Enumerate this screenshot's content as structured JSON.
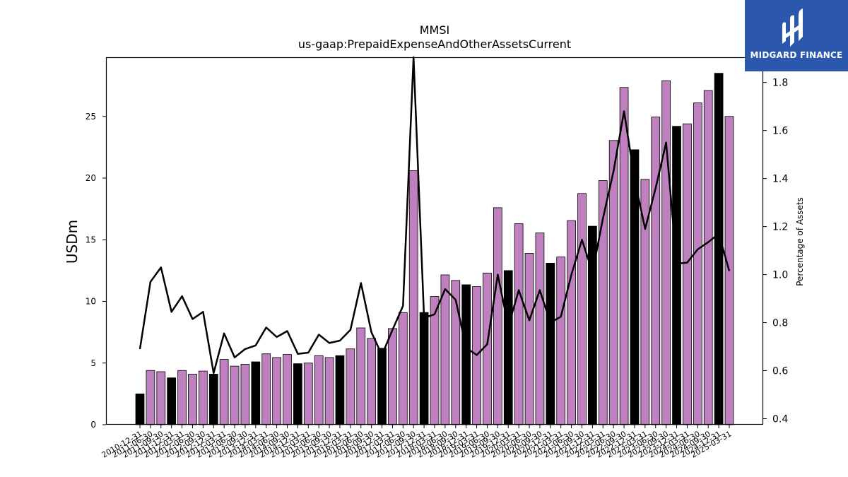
{
  "chart_data": {
    "type": "bar",
    "title": "MMSI",
    "subtitle": "us-gaap:PrepaidExpenseAndOtherAssetsCurrent",
    "ylabel": "USDm",
    "y2label": "Percentage of Assets",
    "ylim": [
      0,
      29.8
    ],
    "y2lim": [
      0.375,
      1.905
    ],
    "yticks": [
      0,
      5,
      10,
      15,
      20,
      25
    ],
    "y2ticks": [
      0.4,
      0.6,
      0.8,
      1.0,
      1.2,
      1.4,
      1.6,
      1.8
    ],
    "grid": false,
    "colors": {
      "quarter_bar": "#bf80bf",
      "annual_bar": "#000000",
      "line": "#000000"
    },
    "categories": [
      "2010-12-31",
      "2011-06-30",
      "2011-09-30",
      "2011-12-31",
      "2012-03-31",
      "2012-06-30",
      "2012-09-30",
      "2012-12-31",
      "2013-03-31",
      "2013-06-30",
      "2013-09-30",
      "2013-12-31",
      "2014-03-31",
      "2014-06-30",
      "2014-09-30",
      "2014-12-31",
      "2015-03-31",
      "2015-06-30",
      "2015-09-30",
      "2015-12-31",
      "2016-03-31",
      "2016-06-30",
      "2016-09-30",
      "2016-12-31",
      "2017-03-31",
      "2017-06-30",
      "2017-09-30",
      "2017-12-31",
      "2018-03-31",
      "2018-06-30",
      "2018-09-30",
      "2018-12-31",
      "2019-03-31",
      "2019-06-30",
      "2019-09-30",
      "2019-12-31",
      "2020-03-31",
      "2020-06-30",
      "2020-09-30",
      "2020-12-31",
      "2021-03-31",
      "2021-06-30",
      "2021-09-30",
      "2021-12-31",
      "2022-03-31",
      "2022-06-30",
      "2022-09-30",
      "2022-12-31",
      "2023-03-31",
      "2023-06-30",
      "2023-09-30",
      "2023-12-31",
      "2024-03-31",
      "2024-06-30",
      "2024-09-30",
      "2024-12-31",
      "2025-03-31"
    ],
    "series": [
      {
        "kind": "bar",
        "values": [
          2.5,
          4.4,
          4.3,
          3.8,
          4.4,
          4.1,
          4.35,
          4.1,
          5.3,
          4.75,
          4.9,
          5.1,
          5.75,
          5.45,
          5.7,
          4.95,
          5.0,
          5.6,
          5.45,
          5.6,
          6.15,
          7.85,
          7.0,
          6.2,
          7.8,
          9.1,
          20.6,
          9.1,
          10.4,
          12.15,
          11.7,
          11.35,
          11.2,
          12.3,
          17.6,
          12.5,
          16.3,
          13.9,
          15.55,
          13.1,
          13.6,
          16.55,
          18.75,
          16.1,
          19.8,
          23.05,
          27.35,
          22.3,
          19.9,
          24.95,
          27.9,
          24.2,
          24.4,
          26.1,
          27.1,
          28.5,
          25.0
        ],
        "annual": [
          1,
          0,
          0,
          1,
          0,
          0,
          0,
          1,
          0,
          0,
          0,
          1,
          0,
          0,
          0,
          1,
          0,
          0,
          0,
          1,
          0,
          0,
          0,
          1,
          0,
          0,
          0,
          1,
          0,
          0,
          0,
          1,
          0,
          0,
          0,
          1,
          0,
          0,
          0,
          1,
          0,
          0,
          0,
          1,
          0,
          0,
          0,
          1,
          0,
          0,
          0,
          1,
          0,
          0,
          0,
          1,
          0
        ]
      },
      {
        "kind": "line",
        "axis": "right",
        "values": [
          0.69,
          0.97,
          1.03,
          0.845,
          0.91,
          0.815,
          0.845,
          0.59,
          0.755,
          0.655,
          0.69,
          0.705,
          0.78,
          0.74,
          0.765,
          0.67,
          0.675,
          0.75,
          0.715,
          0.725,
          0.77,
          0.965,
          0.76,
          0.665,
          0.77,
          0.87,
          1.91,
          0.82,
          0.835,
          0.94,
          0.895,
          0.695,
          0.665,
          0.71,
          1.0,
          0.785,
          0.935,
          0.81,
          0.935,
          0.8,
          0.825,
          1.0,
          1.145,
          1.01,
          1.235,
          1.43,
          1.68,
          1.395,
          1.19,
          1.36,
          1.55,
          1.045,
          1.05,
          1.105,
          1.135,
          1.17,
          1.015
        ]
      }
    ]
  },
  "logo": {
    "text": "MIDGARD FINANCE"
  }
}
